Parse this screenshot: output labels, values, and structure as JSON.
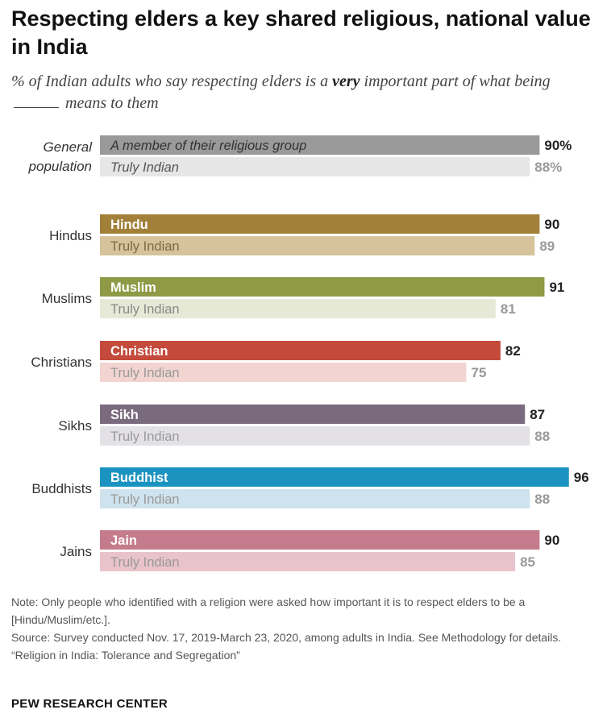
{
  "title": "Respecting elders a key shared religious, national value in India",
  "subtitle_pre": "% of Indian adults who say respecting elders is a ",
  "subtitle_bold": "very",
  "subtitle_mid": " important part of what being",
  "subtitle_post": "means to them",
  "chart_data": {
    "type": "bar",
    "orientation": "horizontal",
    "xlim": [
      0,
      100
    ],
    "grid": false,
    "groups": [
      {
        "label": [
          "General",
          "population"
        ],
        "bars": [
          {
            "label": "A member of their religious group",
            "value": 90,
            "value_label": "90%",
            "color": "#9a9a9a",
            "text_color": "#333333",
            "label_italic": true
          },
          {
            "label": "Truly Indian",
            "value": 88,
            "value_label": "88%",
            "color": "#e6e6e6",
            "text_color": "#555555",
            "label_italic": true
          }
        ]
      },
      {
        "label": [
          "Hindus"
        ],
        "bars": [
          {
            "label": "Hindu",
            "value": 90,
            "value_label": "90",
            "color": "#a2803a",
            "text_color": "#ffffff"
          },
          {
            "label": "Truly Indian",
            "value": 89,
            "value_label": "89",
            "color": "#d6c39b",
            "text_color": "#7a6a4a"
          }
        ]
      },
      {
        "label": [
          "Muslims"
        ],
        "bars": [
          {
            "label": "Muslim",
            "value": 91,
            "value_label": "91",
            "color": "#8e9a45",
            "text_color": "#ffffff"
          },
          {
            "label": "Truly Indian",
            "value": 81,
            "value_label": "81",
            "color": "#e6e9d6",
            "text_color": "#888888"
          }
        ]
      },
      {
        "label": [
          "Christians"
        ],
        "bars": [
          {
            "label": "Christian",
            "value": 82,
            "value_label": "82",
            "color": "#c44a3c",
            "text_color": "#ffffff"
          },
          {
            "label": "Truly Indian",
            "value": 75,
            "value_label": "75",
            "color": "#f2d4d0",
            "text_color": "#999999"
          }
        ]
      },
      {
        "label": [
          "Sikhs"
        ],
        "bars": [
          {
            "label": "Sikh",
            "value": 87,
            "value_label": "87",
            "color": "#7a6a7e",
            "text_color": "#ffffff"
          },
          {
            "label": "Truly Indian",
            "value": 88,
            "value_label": "88",
            "color": "#e4e1e6",
            "text_color": "#999999"
          }
        ]
      },
      {
        "label": [
          "Buddhists"
        ],
        "bars": [
          {
            "label": "Buddhist",
            "value": 96,
            "value_label": "96",
            "color": "#1b93c0",
            "text_color": "#ffffff"
          },
          {
            "label": "Truly Indian",
            "value": 88,
            "value_label": "88",
            "color": "#cfe3ee",
            "text_color": "#999999"
          }
        ]
      },
      {
        "label": [
          "Jains"
        ],
        "bars": [
          {
            "label": "Jain",
            "value": 90,
            "value_label": "90",
            "color": "#c47c8c",
            "text_color": "#ffffff"
          },
          {
            "label": "Truly Indian",
            "value": 85,
            "value_label": "85",
            "color": "#e9c3cb",
            "text_color": "#999999"
          }
        ]
      }
    ]
  },
  "notes": {
    "note": "Note: Only people who identified with a religion were asked how important it is to respect elders to be a [Hindu/Muslim/etc.].",
    "source": "Source: Survey conducted Nov. 17, 2019-March 23, 2020, among adults in India. See Methodology for details.",
    "report": "“Religion in India: Tolerance and Segregation”"
  },
  "brand": "PEW RESEARCH CENTER"
}
